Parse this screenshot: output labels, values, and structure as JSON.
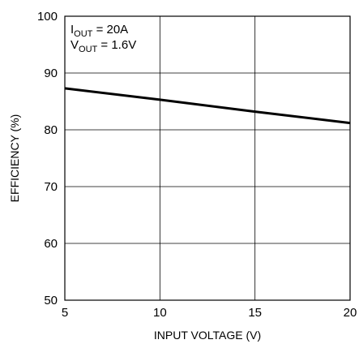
{
  "chart_data": {
    "type": "line",
    "title": "",
    "xlabel": "INPUT VOLTAGE (V)",
    "ylabel": "EFFICIENCY (%)",
    "xlim": [
      5,
      20
    ],
    "ylim": [
      50,
      100
    ],
    "x_ticks": [
      "5",
      "10",
      "15",
      "20"
    ],
    "y_ticks": [
      "50",
      "60",
      "70",
      "80",
      "90",
      "100"
    ],
    "grid": true,
    "series": [
      {
        "x": [
          5,
          10,
          15,
          20
        ],
        "y": [
          87.3,
          85.3,
          83.2,
          81.2
        ],
        "color": "#000000"
      }
    ],
    "annotation": {
      "line1_main": "I",
      "line1_sub": "OUT",
      "line1_rest": " = 20A",
      "line2_main": "V",
      "line2_sub": "OUT",
      "line2_rest": " = 1.6V"
    }
  }
}
